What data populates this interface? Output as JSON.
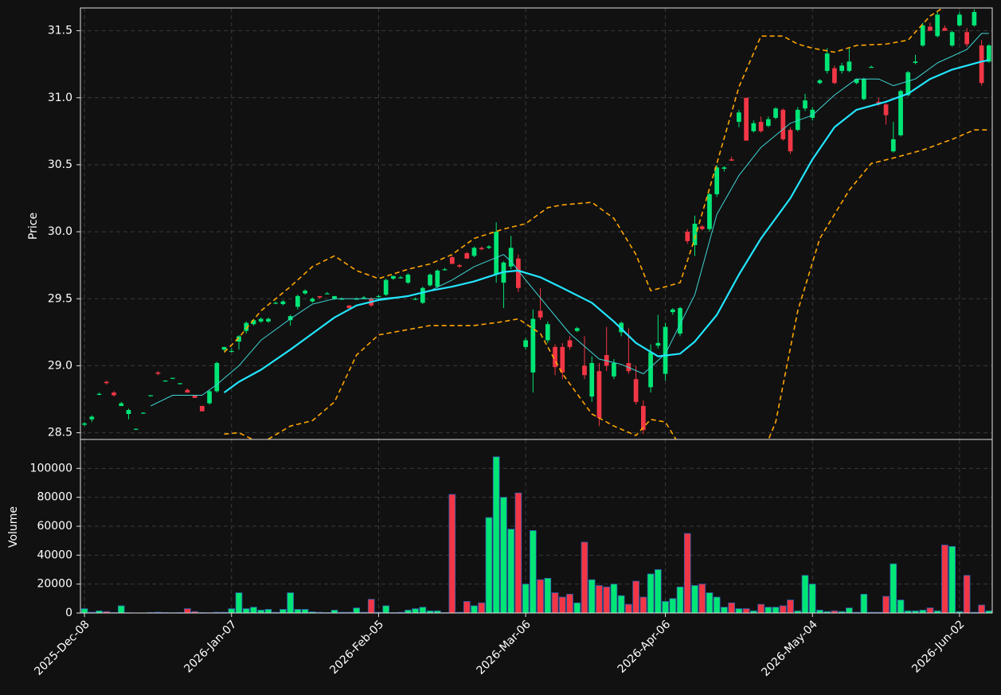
{
  "chart_data": [
    {
      "type": "candlestick",
      "ylabel": "Price",
      "open": [
        28.56,
        28.6,
        28.79,
        28.88,
        28.8,
        28.7,
        28.64,
        28.53,
        28.65,
        28.78,
        28.95,
        28.89,
        28.91,
        28.87,
        28.82,
        28.78,
        28.7,
        28.72,
        28.81,
        29.12,
        29.11,
        29.18,
        29.26,
        29.31,
        29.33,
        29.33,
        29.47,
        29.46,
        29.34,
        29.44,
        29.54,
        29.48,
        29.52,
        29.54,
        29.5,
        29.5,
        29.45,
        29.5,
        29.51,
        29.5,
        29.52,
        29.53,
        29.65,
        29.66,
        29.62,
        29.5,
        29.47,
        29.6,
        29.59,
        29.72,
        29.81,
        29.75,
        29.84,
        29.82,
        29.88,
        29.88,
        29.68,
        29.62,
        29.74,
        29.8,
        29.14,
        28.95,
        29.41,
        29.19,
        29.14,
        29.14,
        29.19,
        29.26,
        29.0,
        28.77,
        28.96,
        29.08,
        28.92,
        29.25,
        29.02,
        28.9,
        28.7,
        28.84,
        29.15,
        28.94,
        29.4,
        29.24,
        30.0,
        29.9,
        30.04,
        30.02,
        30.28,
        30.47,
        30.54,
        30.82,
        31.0,
        30.75,
        30.82,
        30.79,
        30.85,
        30.91,
        30.76,
        30.76,
        30.92,
        30.85,
        31.11,
        31.2,
        31.22,
        31.2,
        31.2,
        31.11,
        30.99,
        31.23,
        30.97,
        30.95,
        30.6,
        30.72,
        31.02,
        31.26,
        31.39,
        31.53,
        31.46,
        31.52,
        31.39,
        31.54,
        31.49,
        31.54,
        31.39,
        31.27
      ],
      "high": [
        28.58,
        28.63,
        28.8,
        28.89,
        28.81,
        28.73,
        28.68,
        28.53,
        28.65,
        28.78,
        28.96,
        28.89,
        28.91,
        28.87,
        28.83,
        28.78,
        28.7,
        28.82,
        29.03,
        29.14,
        29.13,
        29.23,
        29.33,
        29.35,
        29.36,
        29.36,
        29.48,
        29.49,
        29.38,
        29.53,
        29.57,
        29.51,
        29.52,
        29.55,
        29.52,
        29.51,
        29.45,
        29.51,
        29.52,
        29.51,
        29.53,
        29.65,
        29.67,
        29.67,
        29.69,
        29.51,
        29.59,
        29.69,
        29.72,
        29.73,
        29.82,
        29.76,
        29.85,
        29.89,
        29.89,
        29.9,
        30.07,
        29.78,
        29.97,
        29.83,
        29.21,
        29.42,
        29.58,
        29.33,
        29.16,
        29.17,
        29.22,
        29.29,
        29.22,
        29.07,
        29.02,
        29.29,
        29.05,
        29.33,
        29.28,
        29.0,
        28.74,
        29.16,
        29.38,
        29.32,
        29.43,
        29.44,
        30.02,
        30.12,
        30.05,
        30.29,
        30.5,
        30.49,
        30.56,
        30.91,
        31.0,
        30.83,
        30.86,
        30.86,
        30.93,
        30.92,
        30.78,
        30.93,
        31.03,
        30.93,
        31.14,
        31.37,
        31.24,
        31.26,
        31.37,
        31.14,
        31.15,
        31.24,
        31.0,
        30.96,
        30.82,
        31.06,
        31.2,
        31.32,
        31.56,
        31.56,
        31.64,
        31.54,
        31.5,
        31.64,
        31.52,
        31.66,
        31.43,
        31.4
      ],
      "low": [
        28.55,
        28.58,
        28.78,
        28.86,
        28.77,
        28.7,
        28.6,
        28.52,
        28.64,
        28.77,
        28.93,
        28.88,
        28.9,
        28.86,
        28.8,
        28.76,
        28.66,
        28.71,
        28.8,
        29.11,
        29.1,
        29.12,
        29.24,
        29.3,
        29.32,
        29.32,
        29.46,
        29.45,
        29.3,
        29.42,
        29.53,
        29.47,
        29.5,
        29.54,
        29.49,
        29.5,
        29.43,
        29.5,
        29.5,
        29.44,
        29.51,
        29.52,
        29.64,
        29.65,
        29.61,
        29.49,
        29.46,
        29.59,
        29.58,
        29.71,
        29.76,
        29.73,
        29.8,
        29.81,
        29.86,
        29.87,
        29.62,
        29.43,
        29.72,
        29.55,
        29.12,
        28.8,
        29.34,
        29.17,
        28.93,
        28.9,
        29.12,
        29.25,
        28.9,
        28.73,
        28.55,
        28.96,
        28.9,
        29.22,
        28.94,
        28.71,
        28.49,
        28.8,
        29.13,
        28.89,
        29.38,
        29.22,
        29.91,
        29.82,
        30.01,
        30.0,
        30.26,
        30.45,
        30.53,
        30.78,
        30.68,
        30.74,
        30.74,
        30.78,
        30.84,
        30.68,
        30.58,
        30.75,
        30.9,
        30.83,
        31.1,
        31.18,
        31.1,
        31.18,
        31.19,
        31.1,
        30.98,
        31.23,
        30.94,
        30.8,
        30.59,
        30.71,
        31.01,
        31.25,
        31.38,
        31.5,
        31.45,
        31.5,
        31.38,
        31.53,
        31.38,
        31.53,
        31.09,
        31.26
      ],
      "close": [
        28.57,
        28.62,
        28.79,
        28.87,
        28.78,
        28.72,
        28.67,
        28.53,
        28.65,
        28.78,
        28.94,
        28.89,
        28.91,
        28.87,
        28.8,
        28.76,
        28.66,
        28.81,
        29.02,
        29.14,
        29.11,
        29.22,
        29.32,
        29.34,
        29.35,
        29.35,
        29.47,
        29.48,
        29.37,
        29.52,
        29.56,
        29.5,
        29.51,
        29.54,
        29.52,
        29.5,
        29.43,
        29.5,
        29.51,
        29.45,
        29.52,
        29.64,
        29.67,
        29.66,
        29.68,
        29.5,
        29.58,
        29.68,
        29.71,
        29.72,
        29.76,
        29.74,
        29.8,
        29.88,
        29.87,
        29.89,
        30.0,
        29.77,
        29.88,
        29.58,
        29.19,
        29.35,
        29.36,
        29.31,
        28.99,
        28.95,
        29.14,
        29.28,
        28.93,
        29.02,
        28.61,
        29.0,
        29.02,
        29.32,
        28.96,
        28.73,
        28.52,
        29.1,
        29.17,
        29.29,
        29.42,
        29.43,
        29.93,
        30.06,
        30.02,
        30.28,
        30.48,
        30.48,
        30.53,
        30.89,
        30.68,
        30.81,
        30.75,
        30.84,
        30.92,
        30.69,
        30.6,
        30.91,
        30.98,
        30.91,
        31.13,
        31.33,
        31.11,
        31.24,
        31.27,
        31.14,
        31.14,
        31.23,
        30.95,
        30.87,
        30.69,
        31.05,
        31.19,
        31.27,
        31.54,
        31.5,
        31.62,
        31.5,
        31.49,
        31.62,
        31.4,
        31.64,
        31.11,
        31.39
      ],
      "up_color": "#00e676",
      "down_color": "#f23645",
      "xlim": [
        -0.55,
        123.45
      ],
      "ylim": [
        28.45,
        31.67
      ],
      "yticks": [
        28.5,
        {
          "value": 29,
          "label": "29.0"
        },
        29.5,
        {
          "value": 30,
          "label": "30.0"
        },
        30.5,
        {
          "value": 31,
          "label": "31.0"
        },
        31.5
      ],
      "grid": true,
      "overlays": [
        {
          "color": "#3fd6d6",
          "width": 1,
          "dashed": false,
          "x": [
            9,
            12,
            16,
            18,
            21,
            24,
            28,
            31,
            34,
            37,
            40,
            44,
            47,
            50,
            53,
            57,
            58,
            60,
            63,
            66,
            70,
            73,
            76,
            79,
            83,
            86,
            89,
            92,
            96,
            99,
            102,
            105,
            108,
            110,
            113,
            116,
            120,
            122,
            123
          ],
          "values": [
            28.7,
            28.78,
            28.78,
            28.86,
            29.0,
            29.19,
            29.35,
            29.46,
            29.5,
            29.5,
            29.5,
            29.52,
            29.56,
            29.64,
            29.74,
            29.83,
            29.78,
            29.64,
            29.44,
            29.24,
            29.05,
            29.01,
            28.94,
            29.09,
            29.53,
            30.13,
            30.42,
            30.63,
            30.81,
            30.87,
            31.02,
            31.14,
            31.14,
            31.09,
            31.14,
            31.26,
            31.36,
            31.48,
            31.48
          ]
        },
        {
          "color": "#22e5ff",
          "width": 2.2,
          "dashed": false,
          "x": [
            19,
            21,
            24,
            28,
            31,
            34,
            37,
            40,
            44,
            47,
            50,
            53,
            57,
            59,
            62,
            65,
            69,
            72,
            75,
            78,
            81,
            83,
            86,
            89,
            92,
            96,
            99,
            102,
            105,
            109,
            112,
            115,
            118,
            122,
            123
          ],
          "values": [
            28.8,
            28.88,
            28.97,
            29.12,
            29.24,
            29.36,
            29.45,
            29.49,
            29.52,
            29.56,
            29.59,
            29.63,
            29.7,
            29.71,
            29.66,
            29.58,
            29.47,
            29.33,
            29.17,
            29.07,
            29.09,
            29.18,
            29.38,
            29.68,
            29.95,
            30.25,
            30.54,
            30.78,
            30.91,
            30.97,
            31.03,
            31.14,
            31.21,
            31.27,
            31.28
          ]
        },
        {
          "color": "#ffa500",
          "width": 1.6,
          "dashed": true,
          "x": [
            19,
            21,
            24,
            28,
            31,
            34,
            37,
            40,
            44,
            47,
            50,
            53,
            57,
            60,
            63,
            65,
            69,
            72,
            75,
            77,
            81,
            83,
            86,
            89,
            92,
            95,
            97,
            99,
            102,
            105,
            109,
            112,
            115,
            117,
            120,
            123
          ],
          "values": [
            29.1,
            29.21,
            29.41,
            29.59,
            29.74,
            29.82,
            29.71,
            29.65,
            29.72,
            29.76,
            29.83,
            29.95,
            30.02,
            30.06,
            30.18,
            30.2,
            30.22,
            30.1,
            29.83,
            29.56,
            29.62,
            29.95,
            30.51,
            31.08,
            31.46,
            31.46,
            31.4,
            31.37,
            31.34,
            31.39,
            31.4,
            31.43,
            31.61,
            31.68,
            31.79,
            31.82
          ]
        },
        {
          "color": "#ffa500",
          "width": 1.6,
          "dashed": true,
          "x": [
            19,
            21,
            24,
            28,
            31,
            34,
            37,
            40,
            44,
            47,
            50,
            53,
            57,
            59,
            62,
            65,
            69,
            72,
            75,
            77,
            79,
            81,
            86,
            90,
            94,
            97,
            100,
            104,
            107,
            110,
            114,
            118,
            121,
            123
          ],
          "values": [
            28.49,
            28.5,
            28.42,
            28.55,
            28.59,
            28.73,
            29.08,
            29.23,
            29.27,
            29.3,
            29.3,
            29.3,
            29.33,
            29.35,
            29.24,
            28.94,
            28.64,
            28.55,
            28.48,
            28.6,
            28.58,
            28.4,
            28.05,
            28.05,
            28.58,
            29.41,
            29.95,
            30.31,
            30.51,
            30.55,
            30.61,
            30.69,
            30.76,
            30.76
          ]
        }
      ]
    },
    {
      "type": "bar",
      "ylabel": "Volume",
      "values": [
        3000,
        500,
        1500,
        1000,
        300,
        5000,
        200,
        100,
        100,
        300,
        500,
        300,
        200,
        300,
        3000,
        1000,
        300,
        200,
        500,
        500,
        3000,
        14000,
        3000,
        4000,
        2000,
        2500,
        500,
        2500,
        14000,
        2500,
        2500,
        800,
        500,
        300,
        2000,
        500,
        500,
        3500,
        500,
        9500,
        500,
        5000,
        300,
        500,
        2000,
        3000,
        4000,
        1500,
        1500,
        300,
        82000,
        500,
        8000,
        5000,
        7000,
        66000,
        108000,
        80000,
        58000,
        83000,
        20000,
        57000,
        23000,
        24000,
        14000,
        11000,
        13000,
        7000,
        49000,
        23000,
        19000,
        18000,
        20000,
        12000,
        6000,
        22000,
        11000,
        27000,
        30000,
        8000,
        10000,
        18000,
        55000,
        19000,
        20000,
        14000,
        11000,
        4000,
        7000,
        3000,
        3000,
        1500,
        6000,
        4000,
        4000,
        5000,
        9000,
        1500,
        26000,
        20000,
        2000,
        1000,
        1500,
        1000,
        3500,
        500,
        13000,
        500,
        500,
        11500,
        34000,
        9000,
        1500,
        1500,
        2000,
        3500,
        1500,
        47000,
        46000,
        1000,
        26000,
        500,
        5500,
        1500
      ],
      "edge_color": "#2f5fb0",
      "xlim": [
        -0.55,
        123.45
      ],
      "ylim": [
        0,
        120000
      ],
      "yticks": [
        0,
        20000,
        40000,
        60000,
        80000,
        100000
      ],
      "xticks": [
        {
          "value": 0,
          "label": "2025-Dec-08"
        },
        {
          "value": 20,
          "label": "2026-Jan-07"
        },
        {
          "value": 40,
          "label": "2026-Feb-05"
        },
        {
          "value": 60,
          "label": "2026-Mar-06"
        },
        {
          "value": 79,
          "label": "2026-Apr-06"
        },
        {
          "value": 99,
          "label": "2026-May-04"
        },
        {
          "value": 119,
          "label": "2026-Jun-02"
        }
      ],
      "grid": true
    }
  ]
}
